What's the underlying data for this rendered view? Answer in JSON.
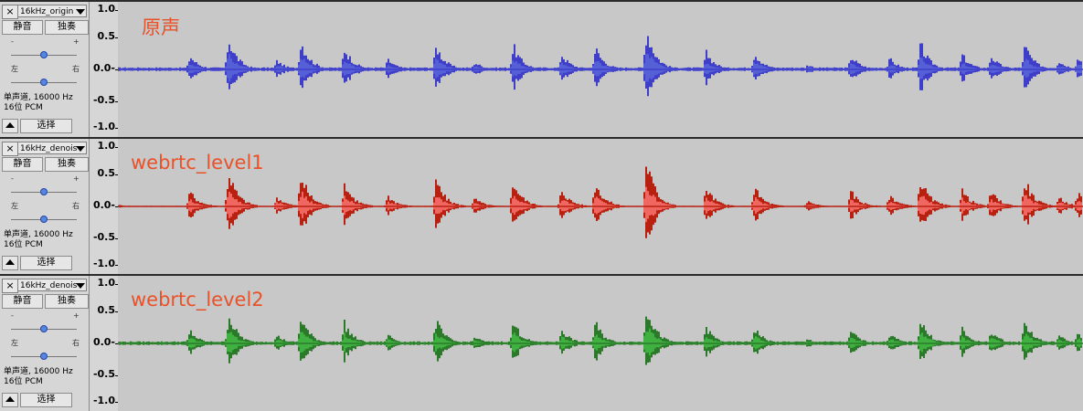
{
  "tracks": [
    {
      "name": "16kHz_origin",
      "mute_label": "静音",
      "solo_label": "独奏",
      "gain_minus": "-",
      "gain_plus": "+",
      "pan_left": "左",
      "pan_right": "右",
      "info_line1": "单声道, 16000 Hz",
      "info_line2": "16位 PCM",
      "select_label": "选择",
      "annotation": "原声",
      "wave_color": "#5560d6",
      "wave_edge": "#3e3ec8",
      "annotation_color": "#e8522a"
    },
    {
      "name": "16kHz_denois",
      "mute_label": "静音",
      "solo_label": "独奏",
      "gain_minus": "-",
      "gain_plus": "+",
      "pan_left": "左",
      "pan_right": "右",
      "info_line1": "单声道, 16000 Hz",
      "info_line2": "16位 PCM",
      "select_label": "选择",
      "annotation": "webrtc_level1",
      "wave_color": "#f06660",
      "wave_edge": "#b82010",
      "annotation_color": "#e8522a"
    },
    {
      "name": "16kHz_denois",
      "mute_label": "静音",
      "solo_label": "独奏",
      "gain_minus": "-",
      "gain_plus": "+",
      "pan_left": "左",
      "pan_right": "右",
      "info_line1": "单声道, 16000 Hz",
      "info_line2": "16位 PCM",
      "select_label": "选择",
      "annotation": "webrtc_level2",
      "wave_color": "#40b040",
      "wave_edge": "#2a7a2a",
      "annotation_color": "#e8522a"
    }
  ],
  "ruler": [
    "1.0",
    "0.5",
    "0.0-",
    "-0.5",
    "-1.0"
  ],
  "bursts": [
    {
      "t": 0.0,
      "a": 0.03
    },
    {
      "t": 0.075,
      "a": 0.28
    },
    {
      "t": 0.115,
      "a": 0.65
    },
    {
      "t": 0.165,
      "a": 0.18
    },
    {
      "t": 0.19,
      "a": 0.6
    },
    {
      "t": 0.235,
      "a": 0.45
    },
    {
      "t": 0.28,
      "a": 0.2
    },
    {
      "t": 0.33,
      "a": 0.5
    },
    {
      "t": 0.37,
      "a": 0.15
    },
    {
      "t": 0.41,
      "a": 0.48
    },
    {
      "t": 0.46,
      "a": 0.32
    },
    {
      "t": 0.495,
      "a": 0.45
    },
    {
      "t": 0.548,
      "a": 0.88
    },
    {
      "t": 0.61,
      "a": 0.35
    },
    {
      "t": 0.66,
      "a": 0.35
    },
    {
      "t": 0.715,
      "a": 0.1
    },
    {
      "t": 0.76,
      "a": 0.28
    },
    {
      "t": 0.8,
      "a": 0.22
    },
    {
      "t": 0.832,
      "a": 0.52
    },
    {
      "t": 0.875,
      "a": 0.3
    },
    {
      "t": 0.905,
      "a": 0.28
    },
    {
      "t": 0.94,
      "a": 0.5
    },
    {
      "t": 0.975,
      "a": 0.18
    },
    {
      "t": 0.995,
      "a": 0.25
    }
  ]
}
